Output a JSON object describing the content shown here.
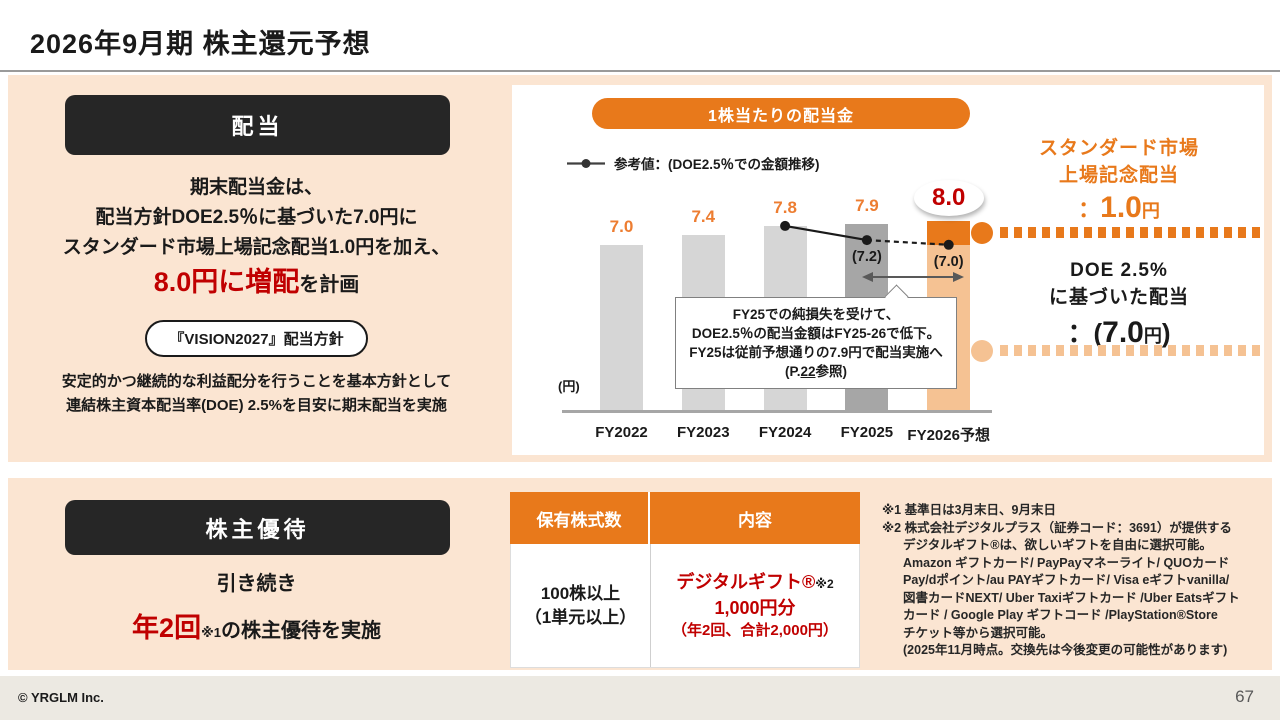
{
  "header": {
    "title": "2026年9月期 株主還元予想"
  },
  "colors": {
    "accent_orange": "#E8791B",
    "orange_text": "#ED7D31",
    "light_orange": "#F5C293",
    "highlight_red": "#C00000",
    "panel_peach": "#FBE5D2",
    "bar_gray": "#D6D6D6",
    "bar_dark_gray": "#A6A6A6"
  },
  "dividend_section": {
    "label": "配当",
    "line1": "期末配当金は、",
    "line2": "配当方針DOE2.5％に基づいた7.0円に",
    "line3": "スタンダード市場上場記念配当1.0円を加え、",
    "highlight": "8.0円に増配",
    "highlight_suffix": "を計画",
    "policy_pill": "『VISION2027』配当方針",
    "policy_line1": "安定的かつ継続的な利益配分を行うことを基本方針として",
    "policy_line2": "連結株主資本配当率(DOE) 2.5%を目安に期末配当を実施"
  },
  "chart_data": {
    "type": "bar",
    "title": "1株当たりの配当金",
    "unit": "(円)",
    "categories": [
      "FY2022",
      "FY2023",
      "FY2024",
      "FY2025",
      "FY2026予想"
    ],
    "values": [
      7.0,
      7.4,
      7.8,
      7.9,
      8.0
    ],
    "bar_labels": [
      "7.0",
      "7.4",
      "7.8",
      "7.9",
      "8.0"
    ],
    "fy2026_breakdown": {
      "base": 7.0,
      "commemorative": 1.0
    },
    "reference_series": {
      "name": "参考値：(DOE2.5％での金額推移)",
      "x": [
        "FY2024",
        "FY2025",
        "FY2026予想"
      ],
      "values": [
        7.8,
        7.2,
        7.0
      ],
      "labels": [
        "",
        "(7.2)",
        "(7.0)"
      ],
      "segments": [
        "solid",
        "dashed"
      ]
    },
    "callout": {
      "line1": "FY25での純損失を受けて、",
      "line2": "DOE2.5％の配当金額はFY25-26で低下。",
      "line3": "FY25は従前予想通りの7.9円で配当実施へ",
      "line4_prefix": "(P.",
      "line4_link": "22",
      "line4_suffix": "参照)"
    },
    "ylim": [
      0,
      8.5
    ],
    "legend_position": "top-left"
  },
  "right_legend": {
    "commemorative": {
      "title1": "スタンダード市場",
      "title2": "上場記念配当",
      "value_prefix": "：",
      "value": "1.0",
      "unit": "円"
    },
    "doe": {
      "title1": "DOE 2.5%",
      "title2": "に基づいた配当",
      "value_prefix": "：(",
      "value": "7.0",
      "unit": "円",
      "value_suffix": ")"
    }
  },
  "benefit_section": {
    "label": "株主優待",
    "line1": "引き続き",
    "highlight": "年2回",
    "note_ref": "※1",
    "line2_suffix": "の株主優待を実施",
    "table": {
      "header_col1": "保有株式数",
      "header_col2": "内容",
      "row": {
        "col1_line1": "100株以上",
        "col1_line2": "（1単元以上）",
        "col2_line1": "デジタルギフト®",
        "col2_note": "※2",
        "col2_line2": "1,000円分",
        "col2_line3": "（年2回、合計2,000円）"
      }
    },
    "notes": [
      {
        "text": "※1 基準日は3月末日、9月末日",
        "indent": false
      },
      {
        "text": "※2 株式会社デジタルプラス（証券コード：3691）が提供する",
        "indent": false
      },
      {
        "text": "デジタルギフト®は、欲しいギフトを自由に選択可能。",
        "indent": true
      },
      {
        "text": "Amazon ギフトカード/ PayPayマネーライト/ QUOカード",
        "indent": true
      },
      {
        "text": "Pay/dポイント/au PAYギフトカード/ Visa eギフトvanilla/",
        "indent": true
      },
      {
        "text": "図書カードNEXT/ Uber Taxiギフトカード /Uber Eatsギフト",
        "indent": true
      },
      {
        "text": "カード / Google Play ギフトコード /PlayStation®Store",
        "indent": true
      },
      {
        "text": "チケット等から選択可能。",
        "indent": true
      },
      {
        "text": "(2025年11月時点。交換先は今後変更の可能性があります)",
        "indent": true
      }
    ]
  },
  "footer": {
    "copyright": "© YRGLM Inc.",
    "page_number": "67"
  }
}
